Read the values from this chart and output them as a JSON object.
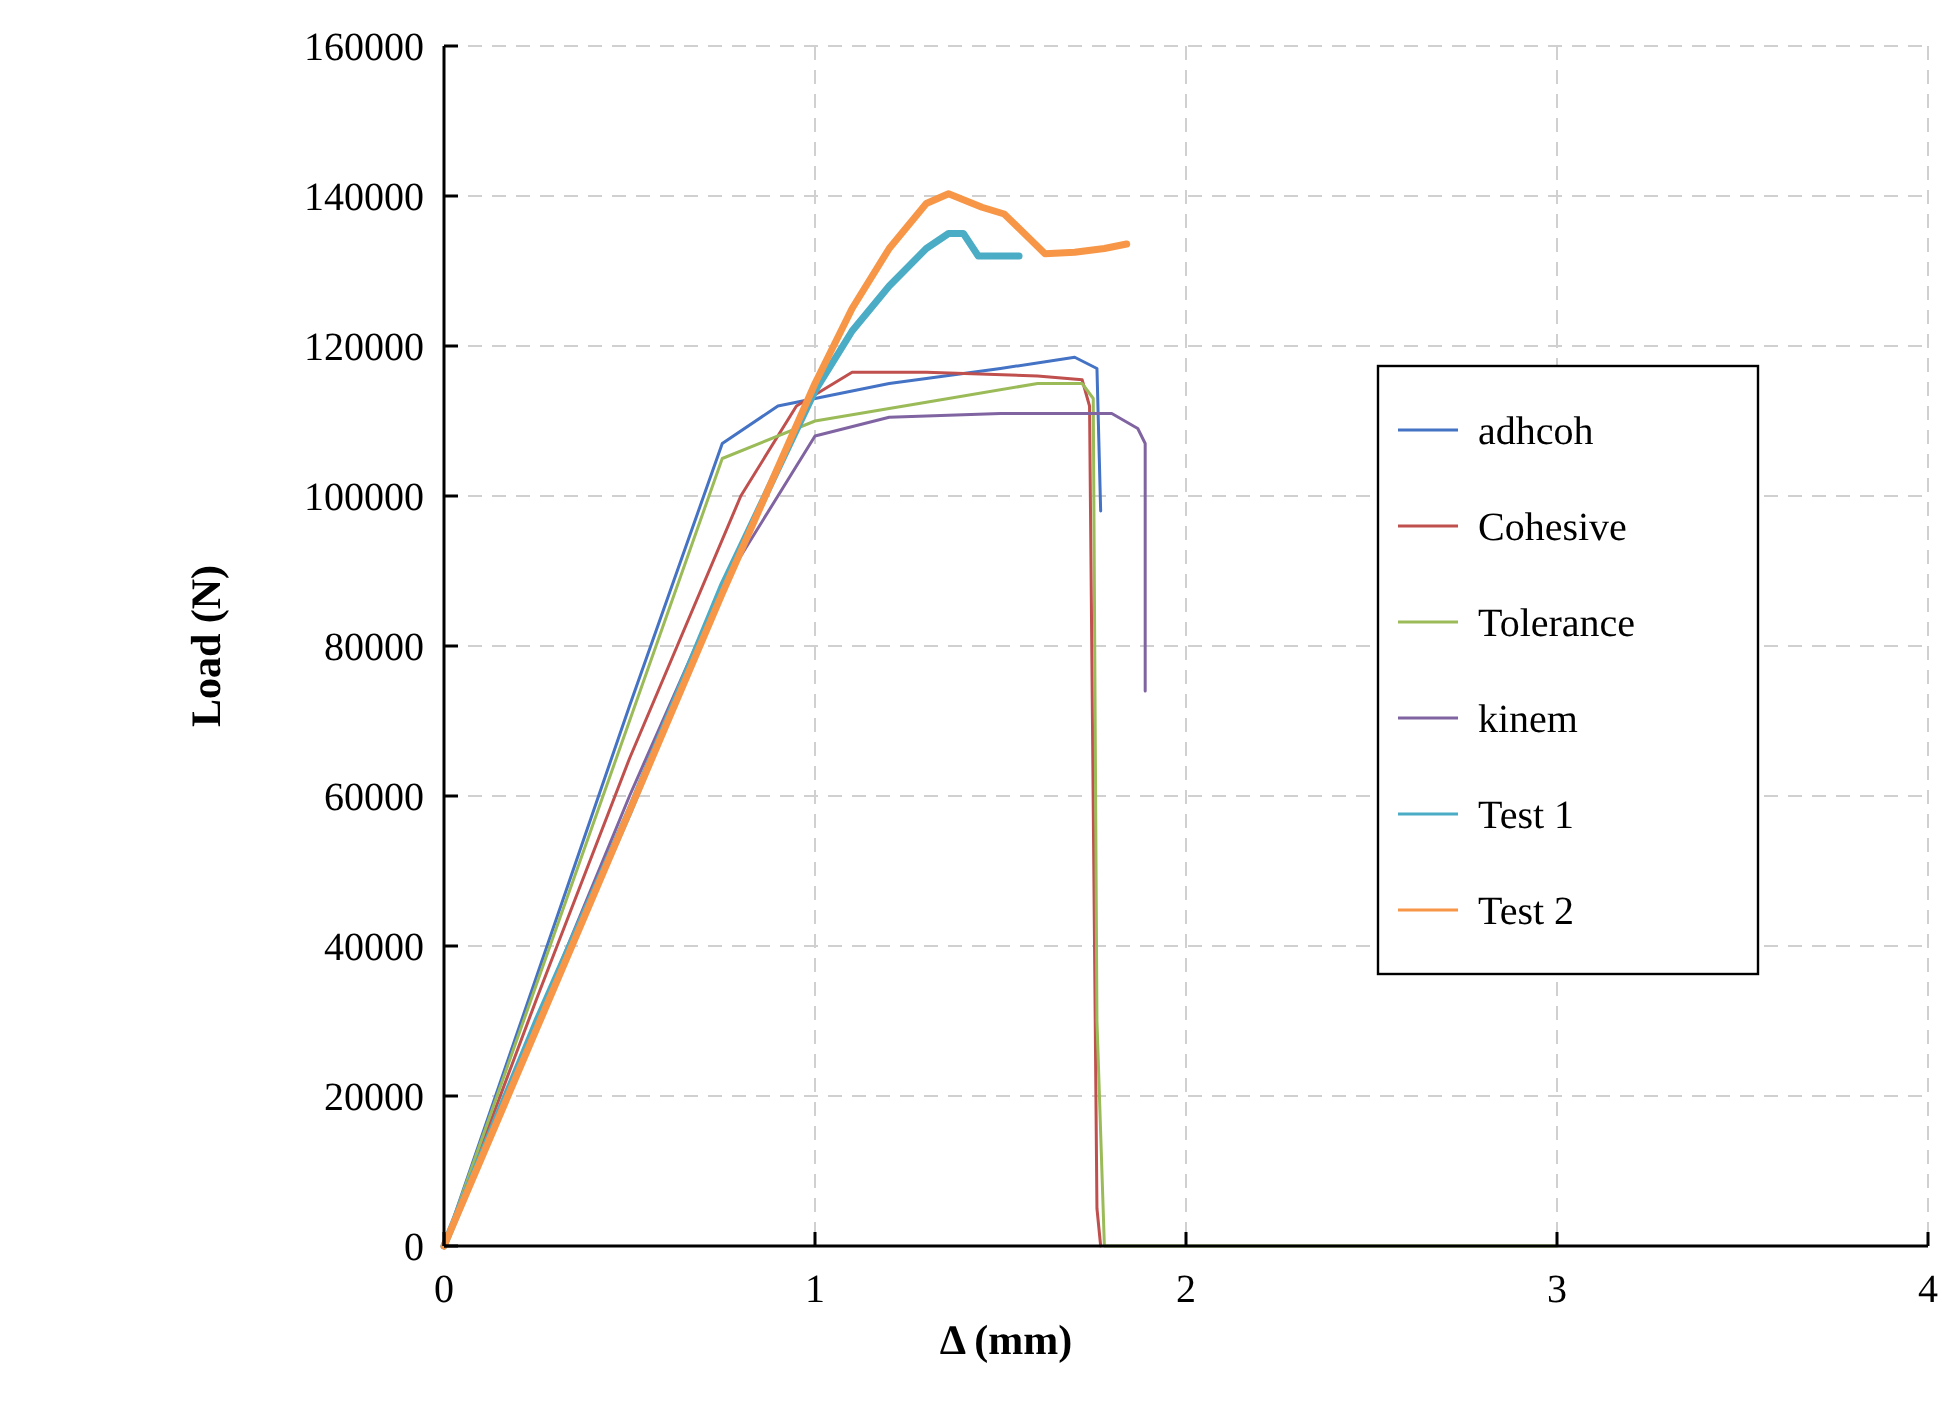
{
  "chart_data": {
    "type": "line",
    "xlabel": "Δ (mm)",
    "ylabel": "Load (N)",
    "xlim": [
      0,
      4
    ],
    "xticks": [
      0,
      1,
      2,
      3,
      4
    ],
    "ylim": [
      0,
      160000
    ],
    "yticks": [
      0,
      20000,
      40000,
      60000,
      80000,
      100000,
      120000,
      140000,
      160000
    ],
    "grid": true,
    "legend": "right",
    "marker": "none",
    "line_style": "solid",
    "series": [
      {
        "name": "adhcoh",
        "color": "#4472c4",
        "x": [
          0,
          0.25,
          0.5,
          0.75,
          0.9,
          1.2,
          1.5,
          1.7,
          1.76,
          1.77
        ],
        "values": [
          0,
          36000,
          72000,
          107000,
          112000,
          115000,
          117000,
          118500,
          117000,
          98000
        ]
      },
      {
        "name": "Cohesive",
        "color": "#c0504d",
        "x": [
          0,
          0.25,
          0.5,
          0.8,
          0.95,
          1.1,
          1.3,
          1.6,
          1.72,
          1.74,
          1.76,
          1.77
        ],
        "values": [
          0,
          33000,
          65000,
          100000,
          112000,
          116500,
          116500,
          116000,
          115500,
          112000,
          5000,
          0
        ]
      },
      {
        "name": "Tolerance",
        "color": "#9bbb59",
        "x": [
          0,
          0.25,
          0.5,
          0.75,
          1,
          1.3,
          1.6,
          1.72,
          1.75,
          1.76,
          1.78,
          3
        ],
        "values": [
          0,
          35000,
          70000,
          105000,
          110000,
          112500,
          115000,
          115000,
          113000,
          30000,
          0,
          0
        ]
      },
      {
        "name": "kinem",
        "color": "#8064a2",
        "x": [
          0,
          0.25,
          0.5,
          0.75,
          1,
          1.2,
          1.5,
          1.8,
          1.87,
          1.89,
          1.89
        ],
        "values": [
          0,
          30000,
          60000,
          88000,
          108000,
          110500,
          111000,
          111000,
          109000,
          107000,
          74000
        ]
      },
      {
        "name": "Test 1",
        "color": "#4bacc6",
        "x": [
          0,
          0.25,
          0.5,
          0.75,
          1,
          1.1,
          1.2,
          1.3,
          1.36,
          1.4,
          1.44,
          1.55
        ],
        "values": [
          0,
          30000,
          58000,
          88000,
          114000,
          122000,
          128000,
          133000,
          135000,
          135000,
          132000,
          132000
        ]
      },
      {
        "name": "Test 2",
        "color": "#f79646",
        "x": [
          0,
          0.25,
          0.5,
          0.75,
          1,
          1.1,
          1.2,
          1.3,
          1.36,
          1.45,
          1.51,
          1.62,
          1.7,
          1.78,
          1.84
        ],
        "values": [
          0,
          29000,
          58000,
          87000,
          115000,
          125000,
          133000,
          139000,
          140300,
          138500,
          137600,
          132300,
          132500,
          133000,
          133600
        ]
      }
    ]
  }
}
